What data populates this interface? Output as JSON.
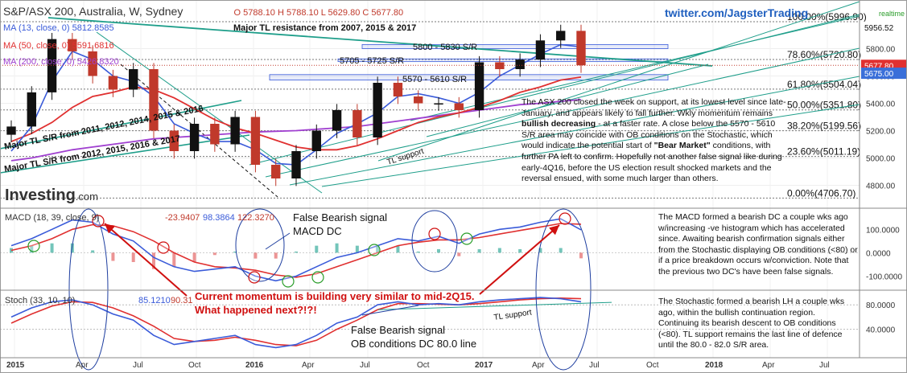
{
  "header": {
    "symbol_line": "S&P/ASX 200, Australia, W, Sydney",
    "ohlc": "O 5788.10  H 5788.10  L 5629.80  C 5677.80",
    "ma13_label": "MA (13, close, 0)",
    "ma13_value": "5812.8585",
    "ma50_label": "MA (50, close, 0)",
    "ma50_value": "5591.6816",
    "ma200_label": "MA (200, close, 0)",
    "ma200_value": "5426.8320",
    "twitter": "twitter.com/JagsterTrading",
    "realtime": "realtime",
    "logo": "Investing",
    "logo_suffix": ".com"
  },
  "price_axis": {
    "ticks": [
      "5800.00",
      "5600.00",
      "5400.00",
      "5200.00",
      "5000.00",
      "4800.00"
    ],
    "tag_top": "5956.52",
    "tag_close": "5677.80",
    "tag_support": "5675.00"
  },
  "fib": [
    {
      "label": "100.00%(5996.90)",
      "value": 5996.9
    },
    {
      "label": "78.60%(5720.80)",
      "value": 5720.8
    },
    {
      "label": "61.80%(5504.04)",
      "value": 5504.04
    },
    {
      "label": "50.00%(5351.80)",
      "value": 5351.8
    },
    {
      "label": "38.20%(5199.56)",
      "value": 5199.56
    },
    {
      "label": "23.60%(5011.19)",
      "value": 5011.19
    },
    {
      "label": "0.00%(4706.70)",
      "value": 4706.7
    }
  ],
  "annotations": {
    "major_tl_resistance": "Major TL resistance from 2007, 2015 & 2017",
    "sr_5800": "5800 - 5830 S/R",
    "sr_5705": "5705 - 5725 S/R",
    "sr_5570": "5570 - 5610 S/R",
    "tl_sr_2011": "Major TL S/R from 2011, 2012, 2014, 2015 & 2016",
    "tl_sr_2012": "Major TL S/R from 2012, 2015, 2016 & 2017",
    "tl_support": "TL support",
    "tl_support_stoch": "TL support",
    "false_bearish_macd_1": "False Bearish signal",
    "false_bearish_macd_2": "MACD DC",
    "current_momentum_1": "Current momentum is building very similar to mid-2Q15.",
    "current_momentum_2": "What happened next?!?!",
    "false_bearish_stoch_1": "False Bearish signal",
    "false_bearish_stoch_2": "OB conditions DC 80.0 line"
  },
  "notes": {
    "price_a": "The ASX 200 closed the week on support,  at its lowest level since late-January, and appears likely to fall further. Wkly momentum remains ",
    "price_b": "bullish decreasing",
    "price_c": " - at a faster rate. A close below the 5570 - 5610 S/R area may coincide with OB conditions on the Stochastic, which would indicate the potential start of ",
    "price_d": "\"Bear Market\"",
    "price_e": " conditions, with further PA left to confirm.  Hopefully not another false signal like during early-4Q16, before the US election result shocked markets and the reversal ensued, with some much larger than others.",
    "macd": "The MACD formed a bearish DC a couple  wks ago w/increasing -ve histogram which has accelerated since. Awaiting bearish confirmation signals either from the Stochastic displaying OB conditions  (<80) or if a price breakdown occurs w/conviction. Note that the previous two DC's have been false signals.",
    "stoch": "The Stochastic formed a bearish LH a couple wks ago, within the bullish continuation region. Continuing its bearish descent to OB conditions (<80).  TL support remains the last line of defence until the 80.0 - 82.0 S/R area."
  },
  "macd_panel": {
    "label": "MACD (18, 39, close, 9)",
    "v1": "-23.9407",
    "v2": "98.3864",
    "v3": "122.3270",
    "ticks": [
      "100.0000",
      "0.0000",
      "-100.0000"
    ]
  },
  "stoch_panel": {
    "label": "Stoch (33, 10, 10)",
    "v1": "85.1210",
    "v2": "90.31",
    "ticks": [
      "80.0000",
      "40.0000"
    ]
  },
  "x_axis": [
    "2015",
    "Apr",
    "Jul",
    "Oct",
    "2016",
    "Apr",
    "Jul",
    "Oct",
    "2017",
    "Apr",
    "Jul",
    "Oct",
    "2018",
    "Apr",
    "Jul"
  ],
  "colors": {
    "bull": "#111111",
    "bear": "#c0392b",
    "ma13": "#3a5bd9",
    "ma50": "#e03030",
    "ma200": "#a040d0",
    "trend": "#1e9e8a",
    "sr_line": "#3a5bd9",
    "annot_red": "#d01010"
  },
  "chart_data": [
    {
      "type": "candlestick",
      "title": "S&P/ASX 200, Australia, W, Sydney",
      "ylim": [
        4650,
        6050
      ],
      "x": [
        "2015-01",
        "2015-02",
        "2015-03",
        "2015-04",
        "2015-05",
        "2015-06",
        "2015-07",
        "2015-08",
        "2015-09",
        "2015-10",
        "2015-11",
        "2015-12",
        "2016-01",
        "2016-02",
        "2016-03",
        "2016-04",
        "2016-05",
        "2016-06",
        "2016-07",
        "2016-08",
        "2016-09",
        "2016-10",
        "2016-11",
        "2016-12",
        "2017-01",
        "2017-02",
        "2017-03",
        "2017-04",
        "2017-05"
      ],
      "close": [
        5230,
        5480,
        5870,
        5780,
        5600,
        5500,
        5650,
        5200,
        5050,
        5250,
        5100,
        5300,
        4950,
        4850,
        5050,
        5200,
        5350,
        5150,
        5550,
        5450,
        5400,
        5400,
        5350,
        5700,
        5650,
        5720,
        5860,
        5930,
        5678
      ],
      "ma13": [
        5050,
        5230,
        5560,
        5780,
        5720,
        5600,
        5560,
        5450,
        5250,
        5180,
        5120,
        5120,
        5060,
        4960,
        4950,
        5060,
        5180,
        5250,
        5330,
        5450,
        5470,
        5440,
        5400,
        5480,
        5600,
        5680,
        5760,
        5830,
        5813
      ],
      "ma50": [
        5120,
        5180,
        5260,
        5370,
        5450,
        5480,
        5520,
        5500,
        5440,
        5360,
        5280,
        5220,
        5180,
        5130,
        5080,
        5060,
        5060,
        5090,
        5140,
        5200,
        5260,
        5300,
        5330,
        5370,
        5420,
        5480,
        5520,
        5570,
        5592
      ],
      "ma200": [
        4980,
        5000,
        5030,
        5060,
        5080,
        5100,
        5120,
        5140,
        5150,
        5160,
        5170,
        5180,
        5190,
        5195,
        5200,
        5210,
        5220,
        5230,
        5250,
        5270,
        5290,
        5310,
        5330,
        5350,
        5370,
        5390,
        5400,
        5415,
        5427
      ]
    },
    {
      "type": "line",
      "title": "MACD (18, 39, close, 9)",
      "ylim": [
        -150,
        180
      ],
      "series": [
        {
          "name": "MACD",
          "values": [
            30,
            60,
            100,
            140,
            130,
            80,
            50,
            -20,
            -60,
            -80,
            -70,
            -60,
            -100,
            -120,
            -100,
            -60,
            -20,
            0,
            30,
            60,
            50,
            70,
            40,
            80,
            100,
            110,
            130,
            145,
            98
          ]
        },
        {
          "name": "Signal",
          "values": [
            10,
            30,
            60,
            100,
            120,
            115,
            90,
            50,
            0,
            -40,
            -60,
            -65,
            -75,
            -95,
            -105,
            -90,
            -60,
            -30,
            0,
            30,
            45,
            55,
            55,
            65,
            80,
            95,
            110,
            125,
            122
          ]
        }
      ],
      "hist": [
        20,
        30,
        40,
        40,
        10,
        -35,
        -40,
        -70,
        -60,
        -40,
        -10,
        5,
        -25,
        -25,
        5,
        30,
        40,
        30,
        30,
        30,
        5,
        15,
        -15,
        15,
        20,
        15,
        20,
        20,
        -24
      ]
    },
    {
      "type": "line",
      "title": "Stoch (33, 10, 10)",
      "ylim": [
        0,
        100
      ],
      "series": [
        {
          "name": "%K",
          "values": [
            60,
            75,
            85,
            88,
            80,
            65,
            55,
            30,
            15,
            20,
            25,
            30,
            15,
            10,
            15,
            30,
            50,
            60,
            80,
            85,
            80,
            82,
            80,
            85,
            88,
            90,
            92,
            90,
            85
          ]
        },
        {
          "name": "%D",
          "values": [
            50,
            65,
            78,
            85,
            84,
            75,
            62,
            45,
            25,
            20,
            22,
            27,
            22,
            15,
            13,
            22,
            40,
            55,
            72,
            82,
            82,
            81,
            80,
            82,
            85,
            88,
            90,
            91,
            90
          ]
        }
      ]
    }
  ]
}
